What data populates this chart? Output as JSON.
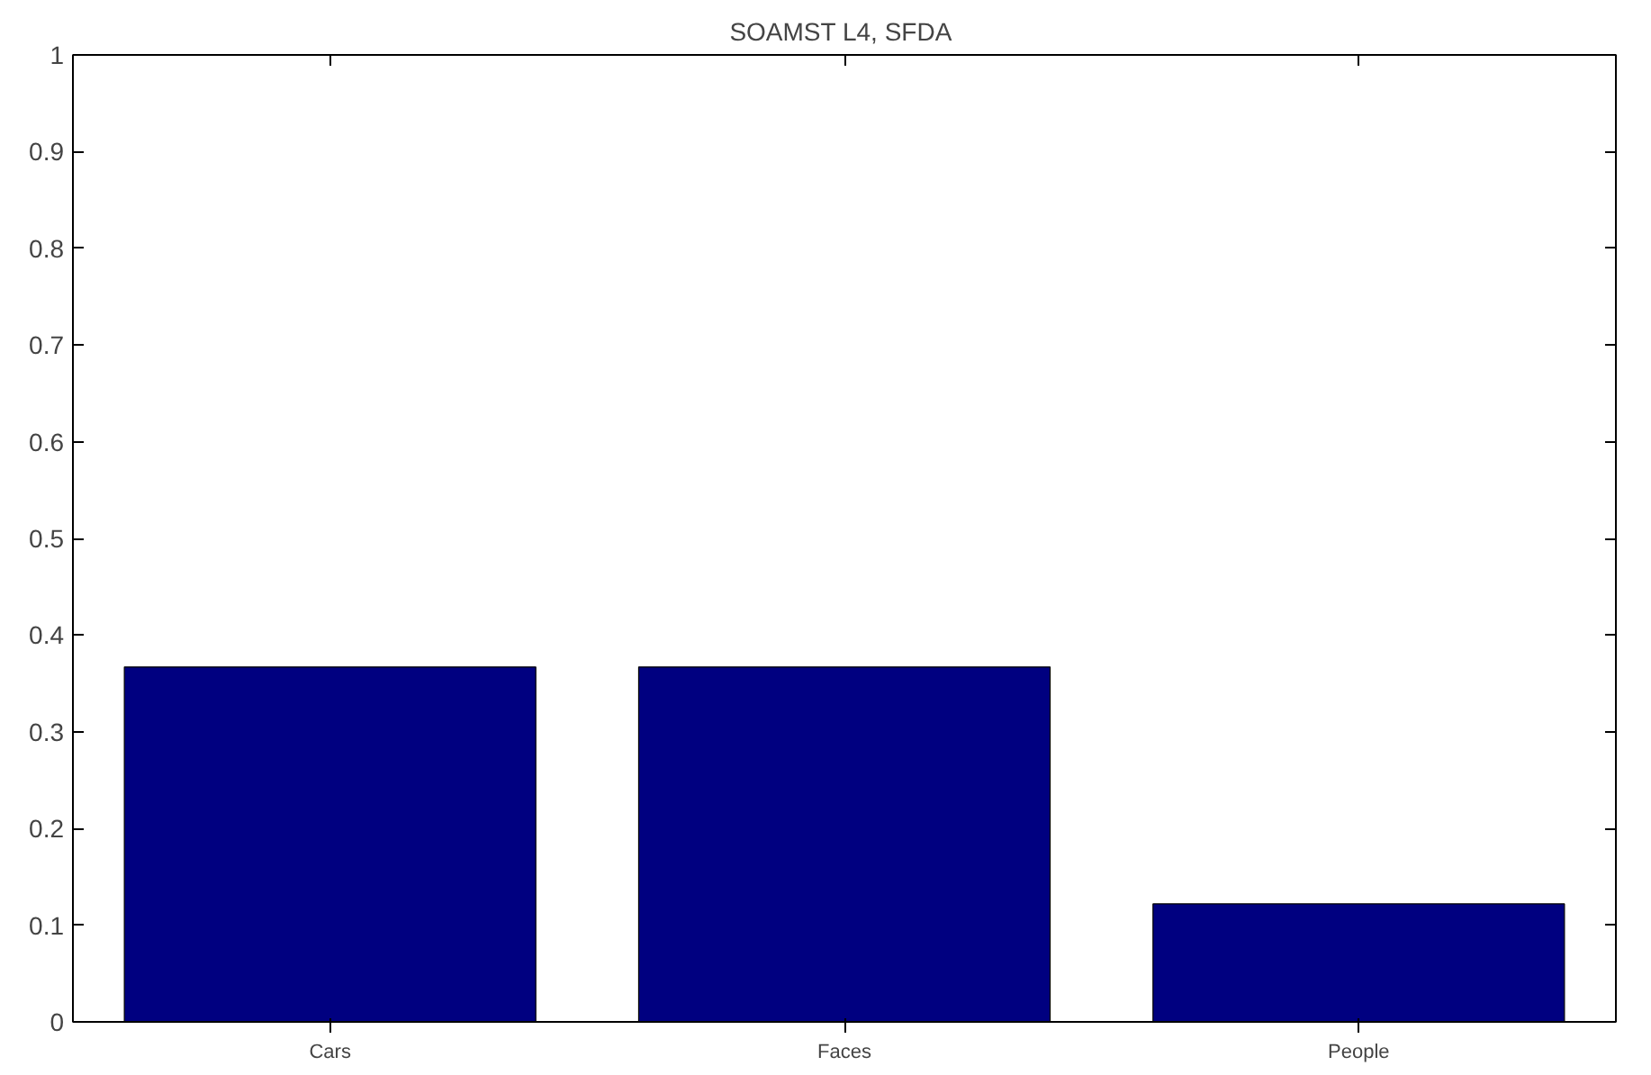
{
  "chart_data": {
    "type": "bar",
    "title": "SOAMST L4,  SFDA",
    "categories": [
      "Cars",
      "Faces",
      "People"
    ],
    "values": [
      0.367,
      0.367,
      0.122
    ],
    "color": "#000080",
    "ylim": [
      0,
      1
    ],
    "yticks": [
      0,
      0.1,
      0.2,
      0.3,
      0.4,
      0.5,
      0.6,
      0.7,
      0.8,
      0.9,
      1
    ],
    "grid": false
  }
}
